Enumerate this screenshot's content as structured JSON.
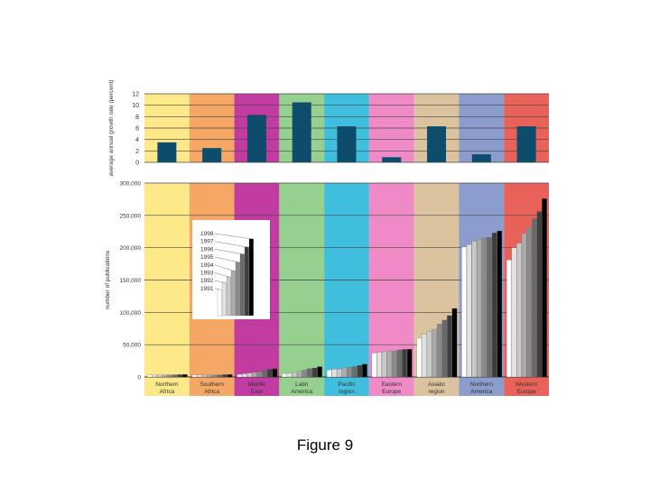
{
  "caption": "Figure 9",
  "chart_data": [
    {
      "type": "bar",
      "ylabel": "average annual growth rate (percent)",
      "ylim": [
        0,
        12
      ],
      "yticks": [
        "0",
        "2",
        "4",
        "6",
        "8",
        "10",
        "12"
      ],
      "categories": [
        "Northern Africa",
        "Southern Africa",
        "Middle East",
        "Latin America",
        "Pacific region",
        "Eastern Europe",
        "Asiatic region",
        "Northern America",
        "Western Europe"
      ],
      "values": [
        3.5,
        2.5,
        8.3,
        10.5,
        6.3,
        0.9,
        6.3,
        1.4,
        6.3
      ],
      "bar_color": "#0d4c6b",
      "region_colors": [
        "#fde98a",
        "#f5a865",
        "#c23ba0",
        "#95d08e",
        "#40bede",
        "#ef8ac6",
        "#dcc39f",
        "#8c9ccc",
        "#e9625a"
      ],
      "grid": true
    },
    {
      "type": "bar",
      "ylabel": "number of publications",
      "ylim": [
        0,
        300000
      ],
      "yticks": [
        "0",
        "50,000",
        "100,000",
        "150,000",
        "200,000",
        "250,000",
        "300,000"
      ],
      "categories": [
        "Northern Africa",
        "Southern Africa",
        "Middle East",
        "Latin America",
        "Pacific region",
        "Eastern Europe",
        "Asiatic region",
        "Northern America",
        "Western Europe"
      ],
      "category_lines": [
        [
          "Northern",
          "Africa"
        ],
        [
          "Southern",
          "Africa"
        ],
        [
          "Middle",
          "East"
        ],
        [
          "Latin",
          "America"
        ],
        [
          "Pacific",
          "region"
        ],
        [
          "Eastern",
          "Europe"
        ],
        [
          "Asiatic",
          "region"
        ],
        [
          "Northern",
          "America"
        ],
        [
          "Western",
          "Europe"
        ]
      ],
      "series": [
        {
          "name": "1991",
          "values": [
            3000,
            3000,
            4000,
            5000,
            11000,
            37000,
            60000,
            201000,
            181000
          ]
        },
        {
          "name": "1992",
          "values": [
            3000,
            3000,
            5000,
            6000,
            12000,
            38000,
            66000,
            205000,
            200000
          ]
        },
        {
          "name": "1993",
          "values": [
            3200,
            3100,
            6000,
            7000,
            12500,
            39000,
            70000,
            210000,
            207000
          ]
        },
        {
          "name": "1994",
          "values": [
            3300,
            3200,
            7000,
            9000,
            14000,
            41000,
            74000,
            213000,
            222000
          ]
        },
        {
          "name": "1995",
          "values": [
            3400,
            3300,
            8000,
            11000,
            15000,
            40000,
            82000,
            215000,
            232000
          ]
        },
        {
          "name": "1996",
          "values": [
            3500,
            3400,
            10000,
            13000,
            16000,
            42000,
            88000,
            216000,
            245000
          ]
        },
        {
          "name": "1997",
          "values": [
            3700,
            3600,
            12000,
            14000,
            18000,
            43000,
            95000,
            223000,
            256000
          ]
        },
        {
          "name": "1998",
          "values": [
            3900,
            3700,
            13000,
            16000,
            20000,
            43000,
            106000,
            226000,
            276000
          ]
        }
      ],
      "series_colors": [
        "#ffffff",
        "#e2e2e2",
        "#c9c9c9",
        "#ababab",
        "#8a8a8a",
        "#6a6a6a",
        "#3e3e3e",
        "#000000"
      ],
      "legend": {
        "placement": "inset-left",
        "labels": [
          "1998",
          "1997",
          "1996",
          "1995",
          "1994",
          "1993",
          "1992",
          "1991"
        ],
        "values": [
          188000,
          168000,
          151000,
          131000,
          110000,
          95000,
          81000,
          64000
        ]
      },
      "grid": true
    }
  ]
}
